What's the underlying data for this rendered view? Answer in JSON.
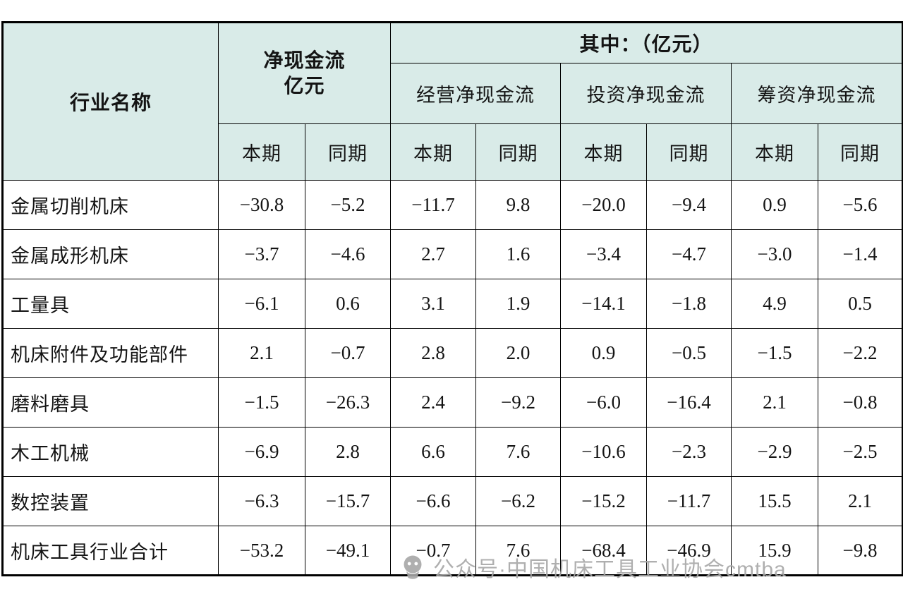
{
  "colors": {
    "header_bg": "#d9ebe8",
    "border": "#000000",
    "text": "#141414",
    "watermark": "#a7a7a7"
  },
  "chart_data": {
    "type": "table",
    "title": "机床工具行业净现金流统计表",
    "unit": "亿元",
    "header": {
      "industry": "行业名称",
      "net_cash_flow_line1": "净现金流",
      "net_cash_flow_line2": "亿元",
      "among_which": "其中：（亿元）",
      "groups": [
        "经营净现金流",
        "投资净现金流",
        "筹资净现金流"
      ],
      "period_current": "本期",
      "period_prior": "同期"
    },
    "column_keys": [
      "净现金流-本期",
      "净现金流-同期",
      "经营净现金流-本期",
      "经营净现金流-同期",
      "投资净现金流-本期",
      "投资净现金流-同期",
      "筹资净现金流-本期",
      "筹资净现金流-同期"
    ],
    "rows": [
      {
        "name": "金属切削机床",
        "values": [
          "−30.8",
          "−5.2",
          "−11.7",
          "9.8",
          "−20.0",
          "−9.4",
          "0.9",
          "−5.6"
        ]
      },
      {
        "name": "金属成形机床",
        "values": [
          "−3.7",
          "−4.6",
          "2.7",
          "1.6",
          "−3.4",
          "−4.7",
          "−3.0",
          "−1.4"
        ]
      },
      {
        "name": "工量具",
        "values": [
          "−6.1",
          "0.6",
          "3.1",
          "1.9",
          "−14.1",
          "−1.8",
          "4.9",
          "0.5"
        ]
      },
      {
        "name": "机床附件及功能部件",
        "values": [
          "2.1",
          "−0.7",
          "2.8",
          "2.0",
          "0.9",
          "−0.5",
          "−1.5",
          "−2.2"
        ]
      },
      {
        "name": "磨料磨具",
        "values": [
          "−1.5",
          "−26.3",
          "2.4",
          "−9.2",
          "−6.0",
          "−16.4",
          "2.1",
          "−0.8"
        ]
      },
      {
        "name": "木工机械",
        "values": [
          "−6.9",
          "2.8",
          "6.6",
          "7.6",
          "−10.6",
          "−2.3",
          "−2.9",
          "−2.5"
        ]
      },
      {
        "name": "数控装置",
        "values": [
          "−6.3",
          "−15.7",
          "−6.6",
          "−6.2",
          "−15.2",
          "−11.7",
          "15.5",
          "2.1"
        ]
      },
      {
        "name": "机床工具行业合计",
        "values": [
          "−53.2",
          "−49.1",
          "−0.7",
          "7.6",
          "−68.4",
          "−46.9",
          "15.9",
          "−9.8"
        ]
      }
    ]
  },
  "watermark": {
    "text": "公众号·中国机床工具工业协会cmtba"
  }
}
